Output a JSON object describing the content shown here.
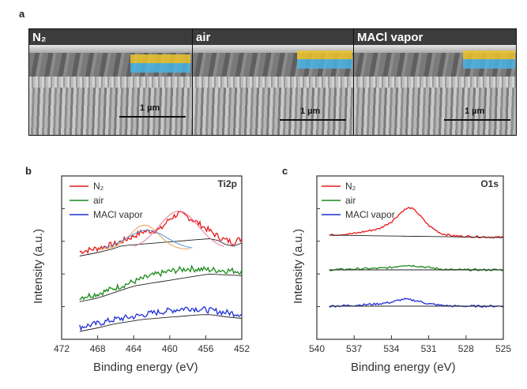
{
  "panels": {
    "a": {
      "letter": "a"
    },
    "b": {
      "letter": "b"
    },
    "c": {
      "letter": "c"
    }
  },
  "sem_images": [
    {
      "label": "N₂",
      "scale_bar": "1 µm"
    },
    {
      "label": "air",
      "scale_bar": "1 µm"
    },
    {
      "label": "MACl vapor",
      "scale_bar": "1 µm"
    }
  ],
  "colors": {
    "N2": "#e81818",
    "air": "#1a8a1a",
    "MACl": "#1f2ed6",
    "fit": "#222222",
    "fit_pink": "#e07a9a",
    "fit_orange": "#e8a050",
    "fit_blue": "#4d8fd6",
    "fit_teal": "#20c0b0"
  },
  "chart_data": [
    {
      "type": "line",
      "title": "Ti2p",
      "xlabel": "Binding energy (eV)",
      "ylabel": "Intensity (a.u.)",
      "xlim": [
        472,
        452
      ],
      "xticks": [
        472,
        468,
        464,
        460,
        456,
        452
      ],
      "x_reversed": true,
      "legend_placement": "top-left",
      "series": [
        {
          "name": "N₂",
          "color": "#e81818",
          "x": [
            470,
            468,
            466,
            464,
            463,
            462,
            461,
            460,
            459,
            458,
            457,
            456,
            455,
            454,
            453,
            452
          ],
          "y": [
            0.1,
            0.14,
            0.19,
            0.28,
            0.33,
            0.34,
            0.36,
            0.48,
            0.54,
            0.5,
            0.44,
            0.37,
            0.3,
            0.24,
            0.21,
            0.25
          ]
        },
        {
          "name": "air",
          "color": "#1a8a1a",
          "x": [
            470,
            468,
            466,
            464,
            462,
            460,
            458,
            456,
            454,
            452
          ],
          "y": [
            0.12,
            0.16,
            0.23,
            0.3,
            0.37,
            0.42,
            0.45,
            0.44,
            0.43,
            0.42
          ]
        },
        {
          "name": "MACl vapor",
          "color": "#1f2ed6",
          "x": [
            470,
            468,
            466,
            464,
            462,
            460,
            458,
            456,
            454,
            452
          ],
          "y": [
            0.05,
            0.09,
            0.14,
            0.17,
            0.21,
            0.24,
            0.27,
            0.25,
            0.22,
            0.2
          ]
        }
      ]
    },
    {
      "type": "line",
      "title": "O1s",
      "xlabel": "Binding energy (eV)",
      "ylabel": "Intensity (a.u.)",
      "xlim": [
        540,
        525
      ],
      "xticks": [
        540,
        537,
        534,
        531,
        528,
        525
      ],
      "x_reversed": true,
      "legend_placement": "top-left",
      "series": [
        {
          "name": "N₂",
          "color": "#e81818",
          "x": [
            539,
            537,
            535,
            534,
            533,
            532.5,
            532,
            531,
            530,
            529,
            527,
            525
          ],
          "y": [
            0.1,
            0.12,
            0.18,
            0.27,
            0.42,
            0.45,
            0.4,
            0.22,
            0.12,
            0.09,
            0.08,
            0.07
          ]
        },
        {
          "name": "air",
          "color": "#1a8a1a",
          "x": [
            539,
            537,
            535,
            534,
            533,
            532,
            531,
            530,
            529,
            527,
            525
          ],
          "y": [
            0.1,
            0.11,
            0.12,
            0.13,
            0.16,
            0.15,
            0.13,
            0.11,
            0.1,
            0.1,
            0.1
          ]
        },
        {
          "name": "MACl vapor",
          "color": "#1f2ed6",
          "x": [
            539,
            537,
            535,
            534,
            533,
            532,
            531,
            530,
            529,
            527,
            525
          ],
          "y": [
            0.1,
            0.11,
            0.13,
            0.15,
            0.19,
            0.17,
            0.13,
            0.11,
            0.1,
            0.1,
            0.1
          ]
        }
      ]
    }
  ]
}
